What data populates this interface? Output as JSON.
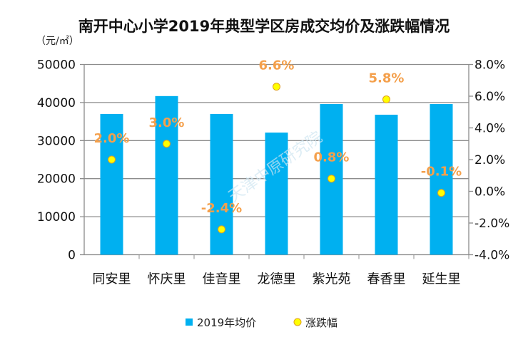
{
  "chart_data": {
    "type": "bar+scatter",
    "title": "南开中心小学2019年典型学区房成交均价及涨跌幅情况",
    "ylabel": "（元/㎡）",
    "categories": [
      "同安里",
      "怀庆里",
      "佳音里",
      "龙德里",
      "紫光苑",
      "春香里",
      "延生里"
    ],
    "series": [
      {
        "name": "2019年均价",
        "type": "bar",
        "axis": "left",
        "color": "#00B0F0",
        "values": [
          37000,
          41700,
          37000,
          32100,
          39600,
          36800,
          39600
        ]
      },
      {
        "name": "涨跌幅",
        "type": "scatter",
        "axis": "right",
        "color": "#FFFF00",
        "values": [
          2.0,
          3.0,
          -2.4,
          6.6,
          0.8,
          5.8,
          -0.1
        ],
        "labels": [
          "2.0%",
          "3.0%",
          "-2.4%",
          "6.6%",
          "0.8%",
          "5.8%",
          "-0.1%"
        ],
        "label_color": "#F4A04C"
      }
    ],
    "ylim": [
      0,
      50000
    ],
    "yticks": [
      "0",
      "10000",
      "20000",
      "30000",
      "40000",
      "50000"
    ],
    "y2lim": [
      -4,
      8
    ],
    "y2ticks": [
      "-4.0%",
      "-2.0%",
      "0.0%",
      "2.0%",
      "4.0%",
      "6.0%",
      "8.0%"
    ],
    "grid": true,
    "legend": "bottom",
    "watermark": "天津中原研究院"
  }
}
